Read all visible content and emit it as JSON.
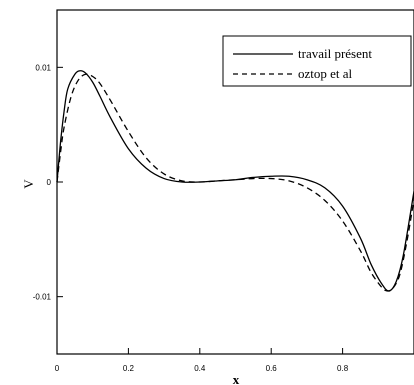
{
  "chart_data": {
    "type": "line",
    "title": "",
    "xlabel": "x",
    "ylabel": "V",
    "xlim": [
      0,
      1
    ],
    "ylim": [
      -0.015,
      0.015
    ],
    "x_ticks": [
      {
        "value": 0,
        "label": "0"
      },
      {
        "value": 0.2,
        "label": "0.2"
      },
      {
        "value": 0.4,
        "label": "0.4"
      },
      {
        "value": 0.6,
        "label": "0.6"
      },
      {
        "value": 0.8,
        "label": "0.8"
      }
    ],
    "y_ticks": [
      {
        "value": 0.01,
        "label": "0.01"
      },
      {
        "value": 0,
        "label": "0"
      },
      {
        "value": -0.01,
        "label": "-0.01"
      }
    ],
    "grid": false,
    "legend_position": "top-right",
    "series": [
      {
        "name": "travail présent",
        "style": "solid",
        "color": "#000000",
        "points": [
          [
            0,
            0
          ],
          [
            0.01,
            0.0035
          ],
          [
            0.02,
            0.0062
          ],
          [
            0.03,
            0.0081
          ],
          [
            0.05,
            0.0094
          ],
          [
            0.065,
            0.0097
          ],
          [
            0.08,
            0.0095
          ],
          [
            0.1,
            0.0087
          ],
          [
            0.12,
            0.0075
          ],
          [
            0.15,
            0.0056
          ],
          [
            0.2,
            0.0029
          ],
          [
            0.25,
            0.0012
          ],
          [
            0.3,
            0.0003
          ],
          [
            0.35,
            0.0
          ],
          [
            0.4,
            0.0
          ],
          [
            0.45,
            0.0001
          ],
          [
            0.5,
            0.0002
          ],
          [
            0.55,
            0.0004
          ],
          [
            0.6,
            0.0005
          ],
          [
            0.65,
            0.0005
          ],
          [
            0.7,
            0.0002
          ],
          [
            0.75,
            -0.0005
          ],
          [
            0.8,
            -0.0021
          ],
          [
            0.85,
            -0.0049
          ],
          [
            0.88,
            -0.0072
          ],
          [
            0.91,
            -0.0089
          ],
          [
            0.93,
            -0.0095
          ],
          [
            0.95,
            -0.0087
          ],
          [
            0.97,
            -0.0064
          ],
          [
            1.0,
            -0.0008
          ]
        ]
      },
      {
        "name": "oztop et al",
        "style": "dashed",
        "color": "#000000",
        "points": [
          [
            0,
            0
          ],
          [
            0.01,
            0.0026
          ],
          [
            0.02,
            0.0048
          ],
          [
            0.04,
            0.0075
          ],
          [
            0.06,
            0.0089
          ],
          [
            0.08,
            0.0094
          ],
          [
            0.1,
            0.0092
          ],
          [
            0.12,
            0.0086
          ],
          [
            0.15,
            0.0071
          ],
          [
            0.2,
            0.0044
          ],
          [
            0.25,
            0.0021
          ],
          [
            0.3,
            0.0007
          ],
          [
            0.35,
            0.0001
          ],
          [
            0.4,
            0.0
          ],
          [
            0.45,
            0.0001
          ],
          [
            0.5,
            0.0002
          ],
          [
            0.55,
            0.0003
          ],
          [
            0.6,
            0.0003
          ],
          [
            0.65,
            0.0001
          ],
          [
            0.7,
            -0.0005
          ],
          [
            0.75,
            -0.0016
          ],
          [
            0.8,
            -0.0034
          ],
          [
            0.85,
            -0.006
          ],
          [
            0.88,
            -0.0079
          ],
          [
            0.91,
            -0.0092
          ],
          [
            0.925,
            -0.0095
          ],
          [
            0.94,
            -0.0093
          ],
          [
            0.96,
            -0.0081
          ],
          [
            0.98,
            -0.0052
          ],
          [
            1.0,
            -0.0015
          ]
        ]
      }
    ]
  }
}
